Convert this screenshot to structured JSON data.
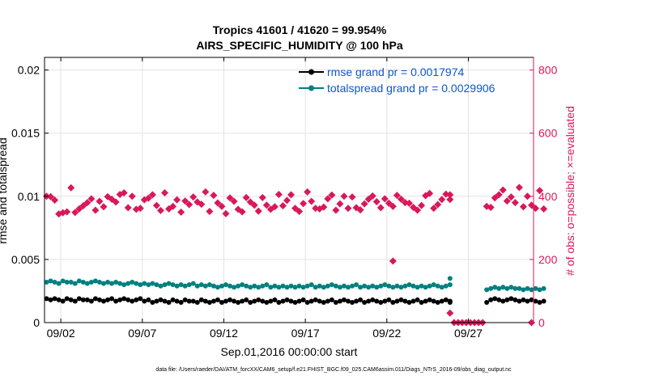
{
  "chart_data": {
    "type": "scatter",
    "title_line1": "Tropics 41601 / 41620 = 99.954%",
    "title_line2": "AIRS_SPECIFIC_HUMIDITY @ 100 hPa",
    "xlabel": "Sep.01,2016 00:00:00 start",
    "ylabel_left": "rmse and totalspread",
    "ylabel_right": "# of obs: o=possible; ×=evaluated",
    "footnote": "data file: /Users/raeder/DAI/ATM_forcXX/CAM6_setup/f.e21.FHIST_BGC.f09_025.CAM6assim.011/Diags_NTrS_2016-09/obs_diag_output.nc",
    "xlim": [
      0.5,
      30.5
    ],
    "ylim_left": [
      0,
      0.021
    ],
    "ylim_right": [
      0,
      840
    ],
    "x_ticks": [
      1.5,
      6.5,
      11.5,
      16.5,
      21.5,
      26.5
    ],
    "x_tick_labels": [
      "09/02",
      "09/07",
      "09/12",
      "09/17",
      "09/22",
      "09/27"
    ],
    "y_ticks_left": [
      0,
      0.005,
      0.01,
      0.015,
      0.02
    ],
    "y_tick_labels_left": [
      "0",
      "0.005",
      "0.01",
      "0.015",
      "0.02"
    ],
    "y_ticks_right": [
      0,
      200,
      400,
      600,
      800
    ],
    "y_tick_labels_right": [
      "0",
      "200",
      "400",
      "600",
      "800"
    ],
    "grid": true,
    "legend_position": "top-right",
    "colors": {
      "rmse": "#000000",
      "totalspread": "#00807f",
      "obs": "#d9185a",
      "legend_text": "#0b57d0",
      "grid": "#e3e3e3"
    },
    "series": [
      {
        "name": "rmse grand pr = 0.0017974",
        "key": "rmse",
        "axis": "left",
        "segments": [
          {
            "start": 0.625,
            "step": 0.25,
            "values": [
              0.0019,
              0.0018,
              0.0019,
              0.0018,
              0.0017,
              0.0019,
              0.0018,
              0.0017,
              0.0019,
              0.0018,
              0.0018,
              0.0017,
              0.0019,
              0.0018,
              0.0017,
              0.0018,
              0.0019,
              0.0017,
              0.0018,
              0.0019,
              0.0018,
              0.0017,
              0.0018,
              0.0019,
              0.0017,
              0.0018,
              0.0016,
              0.0017,
              0.0018,
              0.0017,
              0.0016,
              0.0018,
              0.0017,
              0.0016,
              0.0018,
              0.0017,
              0.0017,
              0.0016,
              0.0018,
              0.0017,
              0.0016,
              0.0017,
              0.0018,
              0.0016,
              0.0017,
              0.0018,
              0.0017,
              0.0016,
              0.0017,
              0.0018,
              0.0016,
              0.0017,
              0.0018,
              0.0017,
              0.0016,
              0.0017,
              0.0018,
              0.0016,
              0.0017,
              0.0018,
              0.0017,
              0.0016,
              0.0017,
              0.0018,
              0.0016,
              0.0017,
              0.0018,
              0.0017,
              0.0016,
              0.0017,
              0.0018,
              0.0016,
              0.0017,
              0.0018,
              0.0017,
              0.0016,
              0.0017,
              0.0018,
              0.0016,
              0.0017,
              0.0018,
              0.0017,
              0.0016,
              0.0017,
              0.0018,
              0.0016,
              0.0017,
              0.0018,
              0.0017,
              0.0016,
              0.0017,
              0.0018,
              0.0016,
              0.0017,
              0.0018,
              0.0017,
              0.0016,
              0.0017,
              0.0018,
              0.0016
            ]
          },
          {
            "start": 25.375,
            "step": 0.25,
            "values": [
              0.0017
            ]
          },
          {
            "start": 27.625,
            "step": 0.25,
            "values": [
              0.0016,
              0.0018,
              0.0019,
              0.0018,
              0.0017,
              0.0018,
              0.0019,
              0.0018,
              0.0017,
              0.0018,
              0.0017,
              0.0018,
              0.0017,
              0.0016,
              0.0017
            ]
          }
        ]
      },
      {
        "name": "totalspread grand pr = 0.0029906",
        "key": "totalspread",
        "axis": "left",
        "segments": [
          {
            "start": 0.625,
            "step": 0.25,
            "values": [
              0.0032,
              0.0033,
              0.0032,
              0.0031,
              0.0033,
              0.0032,
              0.0032,
              0.0031,
              0.0033,
              0.0032,
              0.0031,
              0.0032,
              0.0033,
              0.0032,
              0.0031,
              0.0032,
              0.0031,
              0.0032,
              0.0031,
              0.003,
              0.0031,
              0.0032,
              0.0031,
              0.003,
              0.0031,
              0.003,
              0.0031,
              0.003,
              0.0029,
              0.003,
              0.0031,
              0.003,
              0.0029,
              0.003,
              0.0029,
              0.003,
              0.0031,
              0.0029,
              0.003,
              0.0029,
              0.003,
              0.0029,
              0.0028,
              0.0029,
              0.003,
              0.0029,
              0.0028,
              0.0029,
              0.003,
              0.0029,
              0.0028,
              0.0029,
              0.0028,
              0.0029,
              0.003,
              0.0028,
              0.0029,
              0.0028,
              0.0029,
              0.0028,
              0.0029,
              0.0028,
              0.0029,
              0.0028,
              0.0029,
              0.003,
              0.0028,
              0.0029,
              0.0028,
              0.0029,
              0.003,
              0.0029,
              0.0028,
              0.0029,
              0.0028,
              0.0029,
              0.003,
              0.0028,
              0.0029,
              0.0028,
              0.0029,
              0.0028,
              0.0029,
              0.003,
              0.0029,
              0.0028,
              0.0029,
              0.0028,
              0.0029,
              0.003,
              0.0029,
              0.0028,
              0.0029,
              0.0028,
              0.0029,
              0.003,
              0.0029,
              0.0028,
              0.0029,
              0.003
            ]
          },
          {
            "start": 25.375,
            "step": 0.25,
            "values": [
              0.0035
            ]
          },
          {
            "start": 27.625,
            "step": 0.25,
            "values": [
              0.0026,
              0.0027,
              0.0028,
              0.0027,
              0.0028,
              0.0027,
              0.0028,
              0.0027,
              0.0027,
              0.0026,
              0.0027,
              0.0026,
              0.0027,
              0.0026,
              0.0027
            ]
          }
        ]
      },
      {
        "name": "# of obs",
        "key": "obs",
        "axis": "right",
        "segments": [
          {
            "start": 0.625,
            "step": 0.25,
            "values": [
              400,
              399,
              388,
              344,
              348,
              351,
              427,
              349,
              360,
              370,
              380,
              392,
              356,
              384,
              367,
              399,
              391,
              382,
              406,
              411,
              364,
              400,
              359,
              362,
              389,
              394,
              405,
              371,
              355,
              411,
              360,
              368,
              389,
              350,
              385,
              374,
              398,
              382,
              375,
              414,
              352,
              403,
              379,
              368,
              345,
              395,
              384,
              359,
              351,
              396,
              382,
              372,
              353,
              396,
              372,
              359,
              367,
              406,
              370,
              387,
              405,
              362,
              352,
              377,
              414,
              384,
              362,
              360,
              366,
              392,
              404,
              356,
              376,
              400,
              362,
              398,
              364,
              357,
              376,
              391,
              401,
              383,
              364,
              392,
              378,
              368,
              403,
              391,
              380,
              378,
              365,
              356,
              371,
              402,
              409,
              362,
              374,
              390,
              407,
              390
            ]
          },
          {
            "start": 25.375,
            "step": 0.25,
            "values": [
              405
            ]
          },
          {
            "start": 21.875,
            "step": 0.25,
            "values": [
              195
            ]
          },
          {
            "start": 25.375,
            "step": 0.25,
            "values": [
              30
            ]
          },
          {
            "start": 25.625,
            "step": 0.25,
            "values": [
              0,
              0,
              0,
              0,
              0,
              0,
              0,
              0
            ]
          },
          {
            "start": 27.625,
            "step": 0.25,
            "values": [
              368,
              365,
              395,
              405,
              420,
              385,
              398,
              380,
              428,
              367,
              400,
              372,
              362,
              418,
              360
            ]
          },
          {
            "start": 30.375,
            "step": 0.25,
            "values": [
              0
            ]
          }
        ]
      }
    ]
  }
}
